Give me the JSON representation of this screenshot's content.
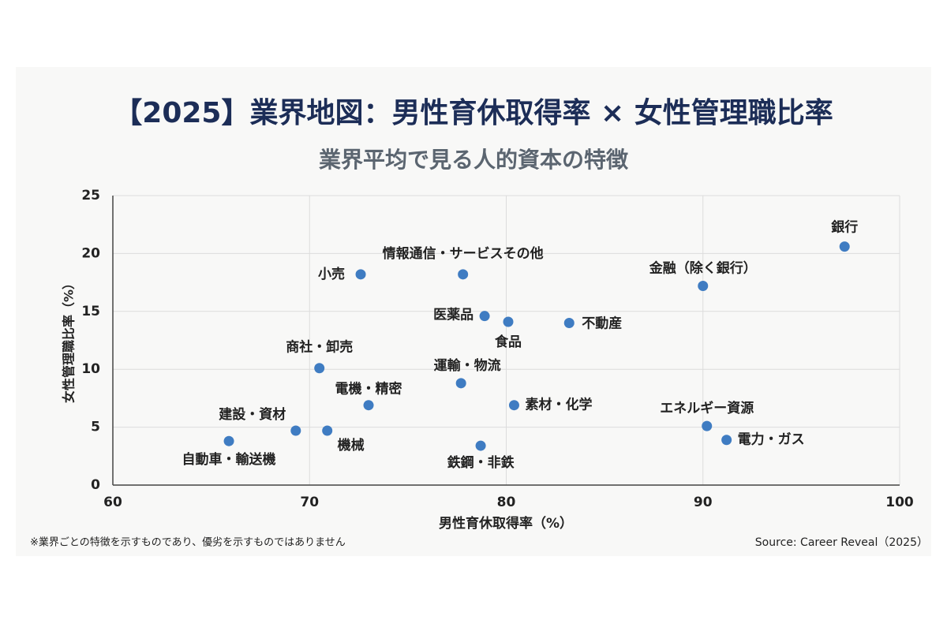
{
  "chart_data": {
    "type": "scatter",
    "title": "【2025】業界地図：男性育休取得率 × 女性管理職比率",
    "subtitle": "業界平均で見る人的資本の特徴",
    "x_label": "男性育休取得率（%）",
    "y_label": "女性管理職比率（%）",
    "note": "※業界ごとの特徴を示すものであり、優劣を示すものではありません",
    "source": "Source: Career Reveal（2025）",
    "point_labels": [
      "銀行",
      "金融（除く銀行）",
      "小売",
      "情報通信・サービスその他",
      "医薬品",
      "食品",
      "不動産",
      "商社・卸売",
      "運輸・物流",
      "電機・精密",
      "素材・化学",
      "建設・資材",
      "機械",
      "自動車・輸送機",
      "鉄鋼・非鉄",
      "エネルギー資源",
      "電力・ガス"
    ],
    "x": [
      97.2,
      90.0,
      72.6,
      77.8,
      78.9,
      80.1,
      83.2,
      70.5,
      77.7,
      73.0,
      80.4,
      69.3,
      70.9,
      65.9,
      78.7,
      90.2,
      91.2
    ],
    "values": [
      20.6,
      17.2,
      18.2,
      18.2,
      14.6,
      14.1,
      14.0,
      10.1,
      8.8,
      6.9,
      6.9,
      4.7,
      4.7,
      3.8,
      3.4,
      5.1,
      3.9
    ],
    "color": "#3f7cc2",
    "xlim": [
      60,
      100
    ],
    "xticks": [
      60,
      70,
      80,
      90,
      100
    ],
    "ylim": [
      0,
      25
    ],
    "yticks": [
      0,
      5,
      10,
      15,
      20,
      25
    ],
    "grid": true
  }
}
